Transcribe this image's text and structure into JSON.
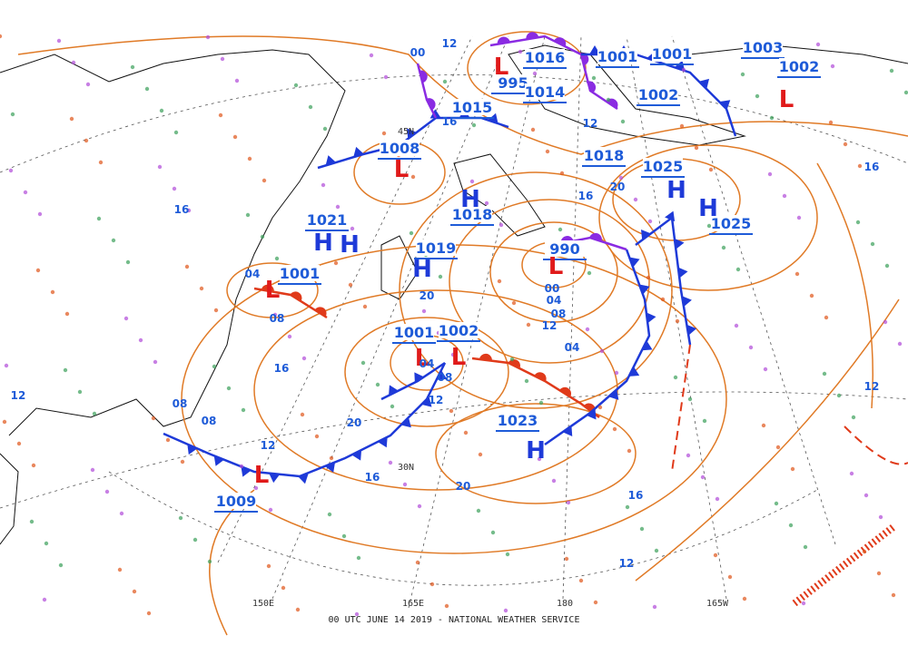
{
  "footer": "00 UTC JUNE 14 2019 - NATIONAL WEATHER SERVICE",
  "grid_labels": [
    "150E",
    "165E",
    "180",
    "165W",
    "30N",
    "45N"
  ],
  "pressure_labels": [
    "1001",
    "1008",
    "1021",
    "1019",
    "1018",
    "1015",
    "990",
    "1001",
    "1002",
    "1023",
    "1009",
    "1025",
    "1025",
    "995",
    "1016",
    "1014",
    "1001",
    "1001",
    "1002",
    "1018",
    "1003",
    "1002"
  ],
  "centers": [
    "L",
    "L",
    "H",
    "H",
    "H",
    "H",
    "L",
    "L",
    "L",
    "H",
    "L",
    "H",
    "H",
    "L",
    "L"
  ],
  "isobar_labels": [
    "12",
    "16",
    "20",
    "08",
    "04",
    "00",
    "12",
    "16",
    "20",
    "12",
    "16",
    "08",
    "04",
    "12",
    "16",
    "20",
    "12",
    "16",
    "12",
    "08",
    "04",
    "08",
    "12",
    "16",
    "20",
    "04",
    "08",
    "00",
    "12",
    "16"
  ]
}
